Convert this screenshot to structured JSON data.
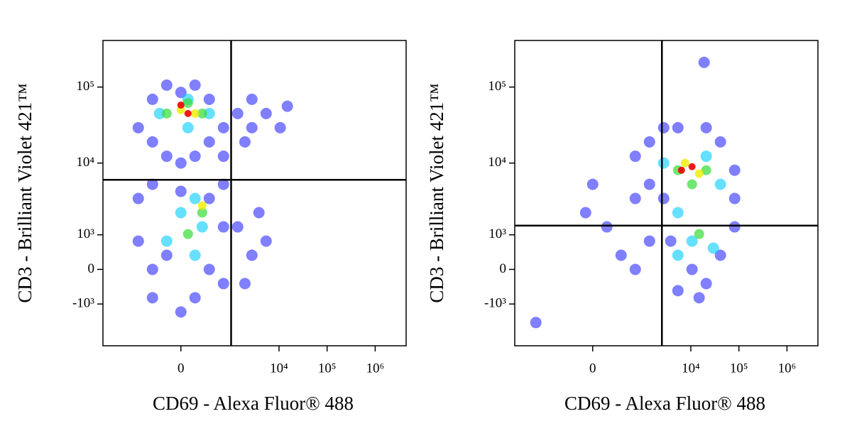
{
  "chart_data": [
    {
      "type": "scatter",
      "xscale": "biexponential",
      "yscale": "biexponential",
      "xlabel": "CD69 - Alexa Fluor® 488",
      "ylabel": "CD3 - Brilliant Violet 421™",
      "xlim": [
        -3800,
        4400000
      ],
      "ylim": [
        -4000,
        410000
      ],
      "xticks": [
        0,
        {
          "value": 10000,
          "label": "10⁴"
        },
        {
          "value": 100000,
          "label": "10⁵"
        },
        {
          "value": 1000000,
          "label": "10⁶"
        }
      ],
      "yticks": [
        {
          "value": -1000,
          "label": "-10³"
        },
        0,
        {
          "value": 1000,
          "label": "10³"
        },
        {
          "value": 10000,
          "label": "10⁴"
        },
        {
          "value": 100000,
          "label": "10⁵"
        }
      ],
      "gates": {
        "x": 1000,
        "y": 6000
      },
      "series": [
        {
          "color": "#0000ff",
          "x": [
            -688,
            -331,
            -331,
            -133,
            -133,
            0,
            0,
            133,
            133,
            331,
            331,
            688,
            688,
            1376,
            2725,
            2725,
            5390,
            10600,
            1950,
            14900,
            -688,
            -688,
            -331,
            -331,
            -331,
            0,
            0,
            133,
            331,
            331,
            688,
            688,
            -133,
            688,
            1376,
            2725,
            5390,
            1950,
            3820
          ],
          "y": [
            29200,
            69000,
            19000,
            106000,
            12300,
            85000,
            10000,
            106000,
            12300,
            69000,
            19000,
            29200,
            12300,
            44900,
            29200,
            69000,
            44900,
            29200,
            19000,
            56000,
            3380,
            773,
            5230,
            0,
            -773,
            -1340,
            4210,
            -773,
            0,
            3380,
            1340,
            -354,
            354,
            5230,
            1340,
            354,
            773,
            -354,
            2160
          ]
        },
        {
          "color": "#00ccff",
          "x": [
            -220,
            331,
            63,
            63,
            0,
            220,
            133,
            -133,
            133
          ],
          "y": [
            44900,
            44900,
            29200,
            69000,
            2160,
            1340,
            3380,
            773,
            354
          ]
        },
        {
          "color": "#33dd33",
          "x": [
            -133,
            220,
            63,
            220,
            63
          ],
          "y": [
            44900,
            44900,
            61700,
            2160,
            1030
          ]
        },
        {
          "color": "#eeee00",
          "x": [
            0,
            133,
            220
          ],
          "y": [
            50000,
            44900,
            2700
          ]
        },
        {
          "color": "#ee0000",
          "x": [
            63,
            0
          ],
          "y": [
            44900,
            58000
          ]
        }
      ]
    },
    {
      "type": "scatter",
      "xscale": "biexponential",
      "yscale": "biexponential",
      "xlabel": "CD69 - Alexa Fluor® 488",
      "ylabel": "CD3 - Brilliant Violet 421™",
      "xlim": [
        -3800,
        4400000
      ],
      "ylim": [
        -4000,
        410000
      ],
      "xticks": [
        0,
        {
          "value": 10000,
          "label": "10⁴"
        },
        {
          "value": 100000,
          "label": "10⁵"
        },
        {
          "value": 1000000,
          "label": "10⁶"
        }
      ],
      "yticks": [
        {
          "value": -1000,
          "label": "-10³"
        },
        0,
        {
          "value": 1000,
          "label": "10³"
        },
        {
          "value": 10000,
          "label": "10⁴"
        },
        {
          "value": 100000,
          "label": "10⁵"
        }
      ],
      "gates": {
        "x": 2500,
        "y": 1400
      },
      "series": [
        {
          "color": "#0000ff",
          "x": [
            688,
            1376,
            1376,
            2725,
            5390,
            20900,
            41300,
            81700,
            81700,
            2725,
            688,
            3820,
            10600,
            20900,
            41300,
            81700,
            5390,
            14900,
            0,
            -63,
            133,
            331,
            688,
            1376,
            -1376,
            18900
          ],
          "y": [
            12300,
            5230,
            19000,
            29200,
            29200,
            29200,
            19000,
            8050,
            3380,
            3380,
            3380,
            773,
            0,
            -354,
            354,
            1340,
            -551,
            -773,
            5230,
            2160,
            1340,
            354,
            0,
            773,
            -1920,
            211000
          ]
        },
        {
          "color": "#00ccff",
          "x": [
            2725,
            20900,
            41300,
            5390,
            10600,
            29500,
            5390
          ],
          "y": [
            10000,
            12300,
            5230,
            2160,
            773,
            551,
            354
          ]
        },
        {
          "color": "#33dd33",
          "x": [
            5390,
            20900,
            10600,
            14900
          ],
          "y": [
            8050,
            8050,
            5230,
            1030
          ]
        },
        {
          "color": "#eeee00",
          "x": [
            7570,
            14900
          ],
          "y": [
            10000,
            7250
          ]
        },
        {
          "color": "#ee0000",
          "x": [
            10600,
            6390
          ],
          "y": [
            8960,
            8050
          ]
        }
      ]
    }
  ]
}
